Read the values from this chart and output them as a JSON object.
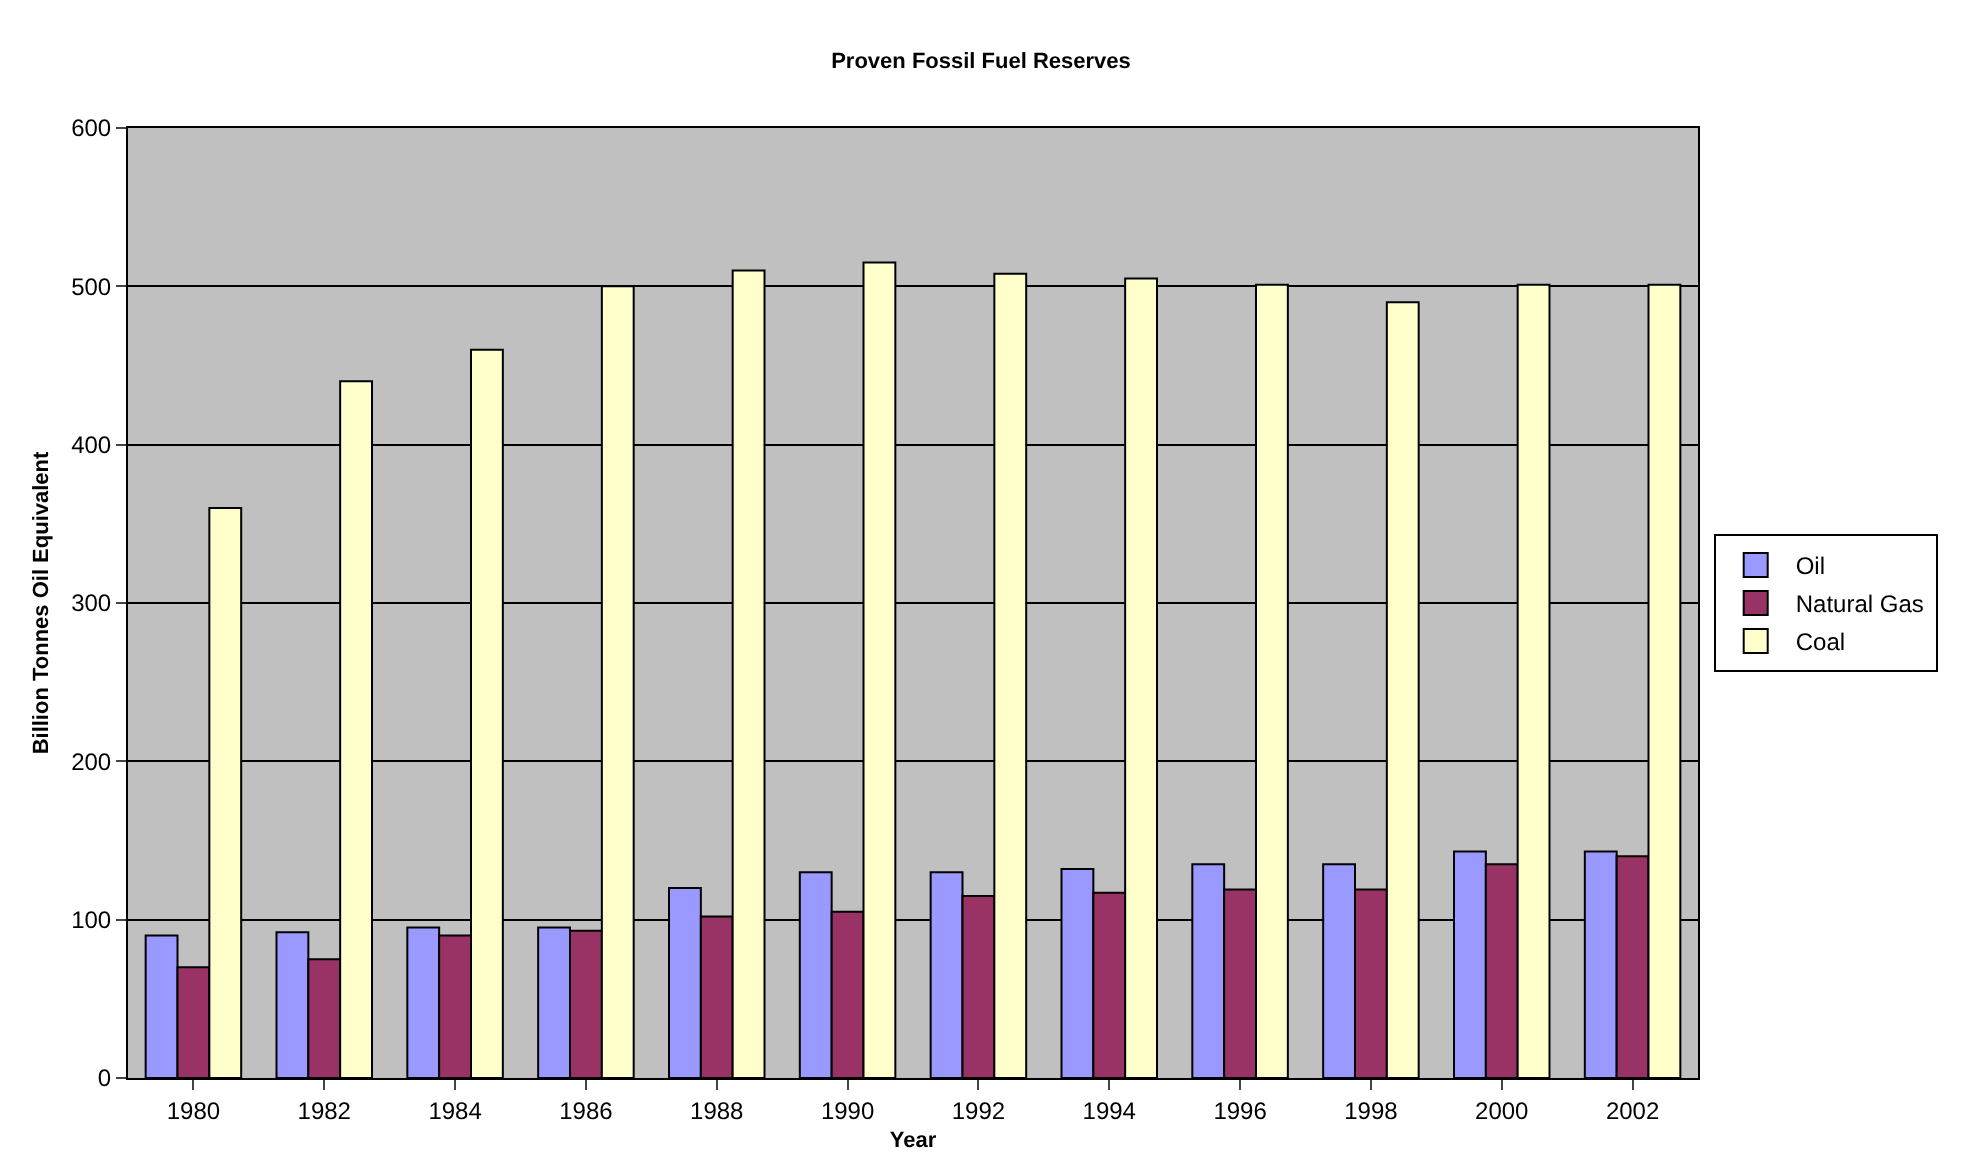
{
  "chart_data": {
    "type": "bar",
    "title": "Proven Fossil Fuel Reserves",
    "xlabel": "Year",
    "ylabel": "Billion Tonnes Oil Equivalent",
    "categories": [
      "1980",
      "1982",
      "1984",
      "1986",
      "1988",
      "1990",
      "1992",
      "1994",
      "1996",
      "1998",
      "2000",
      "2002"
    ],
    "series": [
      {
        "name": "Oil",
        "color": "#9999ff",
        "values": [
          90,
          92,
          95,
          95,
          120,
          130,
          130,
          132,
          135,
          135,
          143,
          143
        ]
      },
      {
        "name": "Natural Gas",
        "color": "#993366",
        "values": [
          70,
          75,
          90,
          93,
          102,
          105,
          115,
          117,
          119,
          119,
          135,
          140
        ]
      },
      {
        "name": "Coal",
        "color": "#ffffcc",
        "values": [
          360,
          440,
          460,
          500,
          510,
          515,
          508,
          505,
          501,
          490,
          501,
          501
        ]
      }
    ],
    "ylim": [
      0,
      600
    ],
    "yticks": [
      0,
      100,
      200,
      300,
      400,
      500,
      600
    ],
    "grid": "y",
    "legend": "right"
  }
}
